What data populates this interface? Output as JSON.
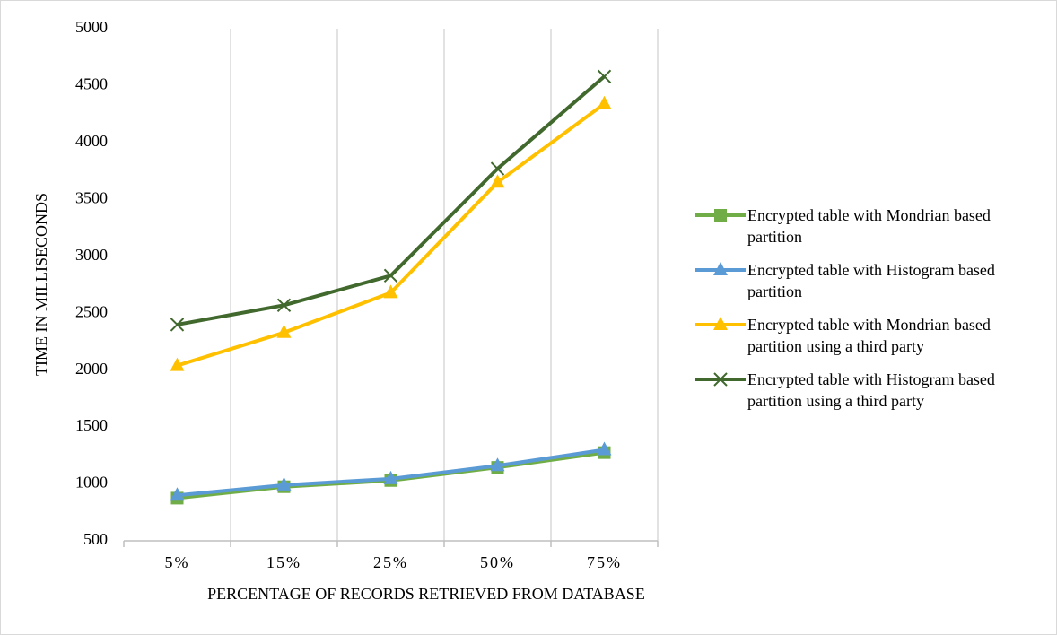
{
  "chart_data": {
    "type": "line",
    "categories": [
      "5%",
      "15%",
      "25%",
      "50%",
      "75%"
    ],
    "series": [
      {
        "name": "Encrypted table with Mondrian based partition",
        "color": "#70ad47",
        "marker": "square",
        "values": [
          875,
          975,
          1030,
          1145,
          1275
        ]
      },
      {
        "name": "Encrypted table with Histogram based partition",
        "color": "#5b9bd5",
        "marker": "triangle",
        "values": [
          900,
          990,
          1045,
          1160,
          1300
        ]
      },
      {
        "name": "Encrypted table with Mondrian based partition using a third party",
        "color": "#ffc000",
        "marker": "triangle",
        "values": [
          2040,
          2330,
          2680,
          3650,
          4340
        ]
      },
      {
        "name": "Encrypted table with Histogram based partition using a third party",
        "color": "#41692e",
        "marker": "x",
        "values": [
          2400,
          2570,
          2830,
          3770,
          4580
        ]
      }
    ],
    "ylim": [
      500,
      5000
    ],
    "yticks": [
      500,
      1000,
      1500,
      2000,
      2500,
      3000,
      3500,
      4000,
      4500,
      5000
    ],
    "x_label": "PERCENTAGE OF RECORDS RETRIEVED FROM DATABASE",
    "y_label": "TIME IN MILLISECONDS",
    "legend": "right"
  }
}
